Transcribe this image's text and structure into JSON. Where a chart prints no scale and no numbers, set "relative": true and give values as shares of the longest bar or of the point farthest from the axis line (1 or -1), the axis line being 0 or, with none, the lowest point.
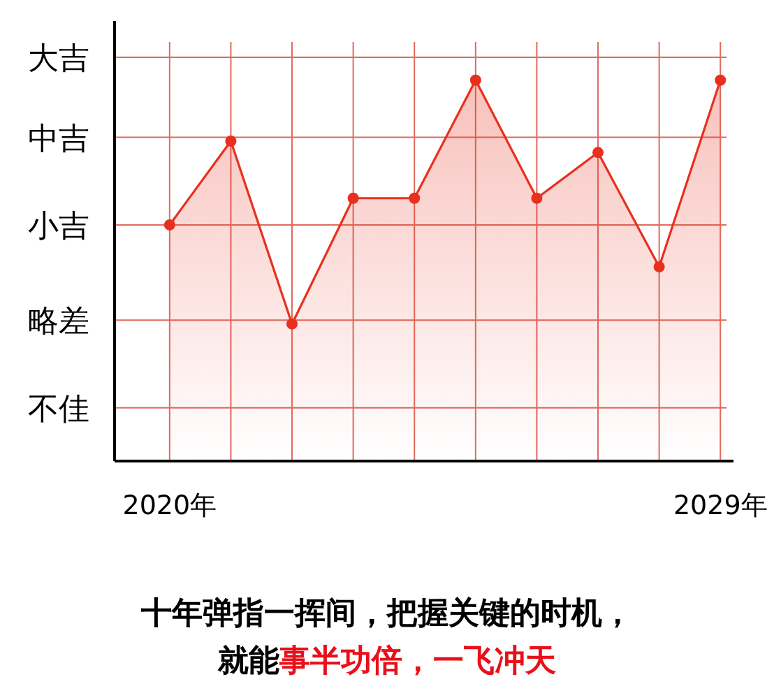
{
  "chart_data": {
    "type": "area",
    "relative": true,
    "x": [
      2020,
      2021,
      2022,
      2023,
      2024,
      2025,
      2026,
      2027,
      2028,
      2029
    ],
    "series": [
      {
        "color": "#e8301e",
        "values": [
          0.62,
          0.84,
          0.36,
          0.69,
          0.69,
          1,
          0.69,
          0.81,
          0.51,
          1
        ]
      }
    ],
    "xlim": [
      2019.1,
      2029.1
    ],
    "xticks": [
      {
        "value": 2020,
        "label": "2020年"
      },
      {
        "value": 2021,
        "label": null
      },
      {
        "value": 2022,
        "label": null
      },
      {
        "value": 2023,
        "label": null
      },
      {
        "value": 2024,
        "label": null
      },
      {
        "value": 2025,
        "label": null
      },
      {
        "value": 2026,
        "label": null
      },
      {
        "value": 2027,
        "label": null
      },
      {
        "value": 2028,
        "label": null
      },
      {
        "value": 2029,
        "label": "2029年"
      }
    ],
    "ref_lines": [
      {
        "axis": "y",
        "value": 0.14,
        "label": "不佳",
        "color": "#e06a5e"
      },
      {
        "axis": "y",
        "value": 0.37,
        "label": "略差",
        "color": "#e06a5e"
      },
      {
        "axis": "y",
        "value": 0.62,
        "label": "小吉",
        "color": "#e06a5e"
      },
      {
        "axis": "y",
        "value": 0.85,
        "label": "中吉",
        "color": "#e06a5e"
      },
      {
        "axis": "y",
        "value": 1.06,
        "label": "大吉",
        "color": "#e06a5e"
      }
    ],
    "grid": "x",
    "marker": "circle",
    "annotations": [
      "十年弹指一挥间，把握关键的时机，",
      "就能",
      "事半功倍，一飞冲天"
    ]
  }
}
